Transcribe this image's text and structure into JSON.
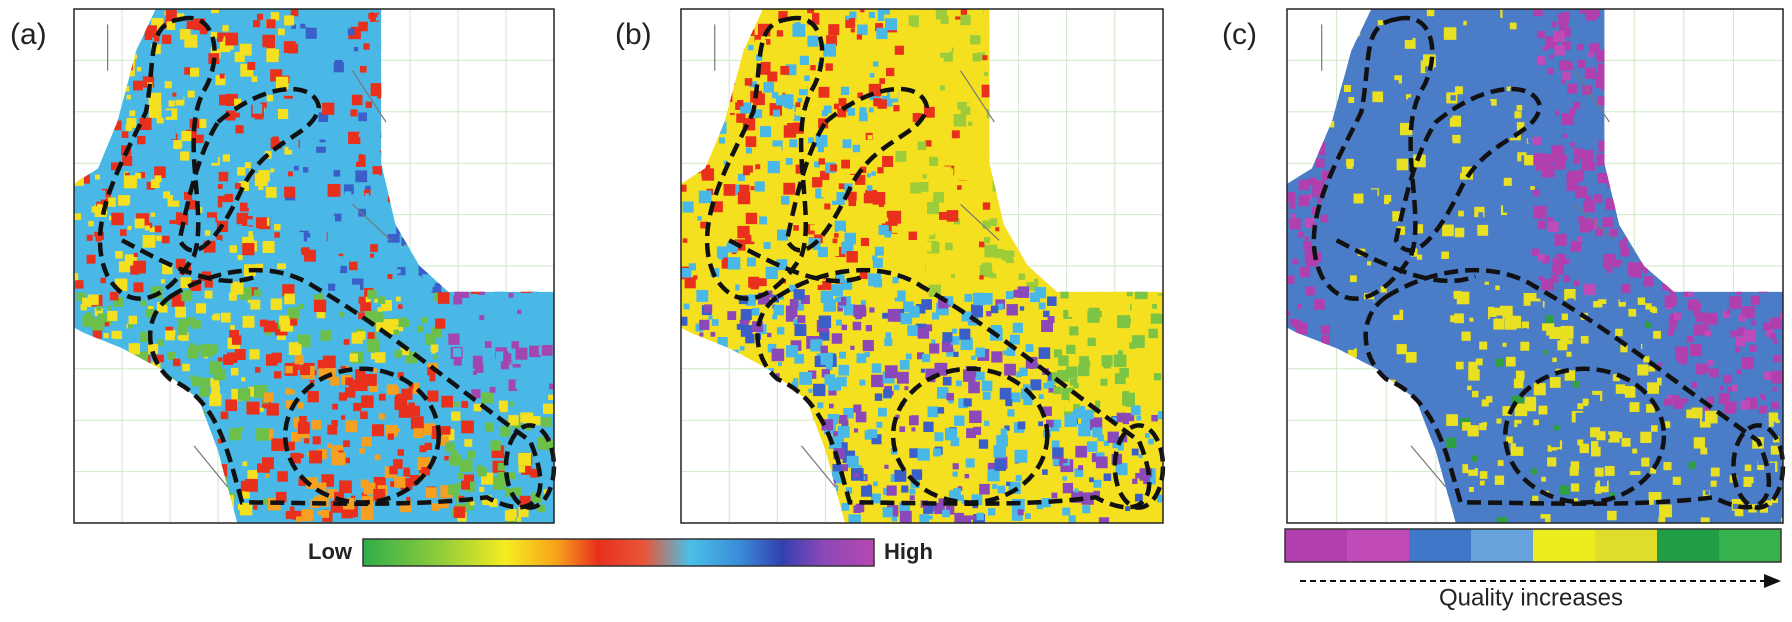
{
  "panels": [
    {
      "label": "(a)"
    },
    {
      "label": "(b)"
    },
    {
      "label": "(c)"
    }
  ],
  "legend": {
    "low": "Low",
    "high": "High"
  },
  "quality_legend": {
    "label": "Quality increases"
  }
}
